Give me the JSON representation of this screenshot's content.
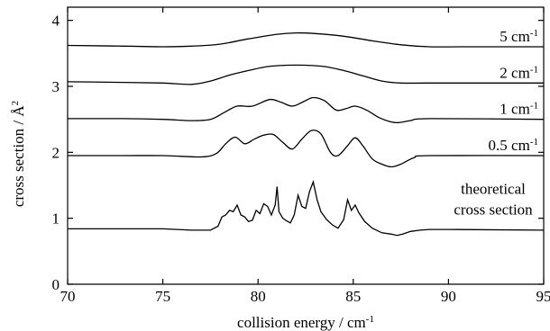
{
  "chart_data": {
    "type": "line",
    "xlabel": "collision energy / cm",
    "xlabel_sup": "-1",
    "ylabel": "cross section / Å",
    "ylabel_sup": "2",
    "xlim": [
      70,
      95
    ],
    "ylim": [
      0,
      4.2
    ],
    "xticks": [
      70,
      75,
      80,
      85,
      90,
      95
    ],
    "yticks": [
      0,
      1,
      2,
      3,
      4
    ],
    "grid": false,
    "series": [
      {
        "name": "5 cm",
        "label_sup": "-1",
        "label_pos": [
          95,
          3.6
        ],
        "x": [
          70,
          73,
          75,
          76.5,
          78,
          79.5,
          81,
          82,
          83,
          84.5,
          86,
          87.5,
          89,
          91,
          95
        ],
        "y": [
          3.62,
          3.61,
          3.6,
          3.61,
          3.64,
          3.72,
          3.79,
          3.81,
          3.8,
          3.76,
          3.69,
          3.63,
          3.6,
          3.6,
          3.6
        ]
      },
      {
        "name": "2 cm",
        "label_sup": "-1",
        "label_pos": [
          95,
          3.05
        ],
        "x": [
          70,
          73,
          75,
          76.5,
          77.5,
          78.5,
          79.5,
          80.5,
          81.5,
          82.5,
          83.5,
          84.5,
          85.5,
          86.5,
          87.5,
          89,
          95
        ],
        "y": [
          3.07,
          3.06,
          3.05,
          3.03,
          3.08,
          3.17,
          3.24,
          3.3,
          3.32,
          3.32,
          3.3,
          3.24,
          3.16,
          3.08,
          3.05,
          3.05,
          3.05
        ]
      },
      {
        "name": "1 cm",
        "label_sup": "-1",
        "label_pos": [
          95,
          2.5
        ],
        "x": [
          70,
          73,
          75,
          76.5,
          77.5,
          78.2,
          78.9,
          79.7,
          80.6,
          81.2,
          81.8,
          82.4,
          82.9,
          83.5,
          84.1,
          84.6,
          85.1,
          85.7,
          86.4,
          87.2,
          88,
          89,
          95
        ],
        "y": [
          2.51,
          2.51,
          2.5,
          2.48,
          2.5,
          2.6,
          2.7,
          2.7,
          2.8,
          2.76,
          2.7,
          2.77,
          2.83,
          2.78,
          2.64,
          2.66,
          2.7,
          2.64,
          2.52,
          2.45,
          2.48,
          2.51,
          2.5
        ]
      },
      {
        "name": "0.5 cm",
        "label_sup": "-1",
        "label_pos": [
          95,
          1.95
        ],
        "x": [
          70,
          73,
          75,
          77,
          77.8,
          78.3,
          78.8,
          79.3,
          79.8,
          80.3,
          80.8,
          81.3,
          81.8,
          82.3,
          82.8,
          83.3,
          83.8,
          84.2,
          84.7,
          85.1,
          85.5,
          86,
          86.5,
          87,
          87.5,
          88.2,
          89,
          95
        ],
        "y": [
          1.95,
          1.95,
          1.95,
          1.93,
          1.98,
          2.13,
          2.23,
          2.13,
          2.2,
          2.26,
          2.27,
          2.15,
          2.05,
          2.2,
          2.33,
          2.28,
          2.0,
          1.95,
          2.1,
          2.22,
          2.1,
          1.9,
          1.82,
          1.78,
          1.82,
          1.92,
          1.95,
          1.95
        ]
      },
      {
        "name": "theoretical",
        "name2": "cross section",
        "label_pos": [
          95,
          0.83
        ],
        "x": [
          70,
          73,
          75,
          76.5,
          77.5,
          77.9,
          78.1,
          78.3,
          78.5,
          78.7,
          78.9,
          79.1,
          79.3,
          79.5,
          79.7,
          79.9,
          80.1,
          80.3,
          80.5,
          80.7,
          80.9,
          81.0,
          81.1,
          81.3,
          81.5,
          81.7,
          81.9,
          82.1,
          82.3,
          82.5,
          82.7,
          82.9,
          83.1,
          83.3,
          83.6,
          83.9,
          84.2,
          84.5,
          84.7,
          84.9,
          85.1,
          85.3,
          85.6,
          86.0,
          86.5,
          87.0,
          87.3,
          87.6,
          88.0,
          88.5,
          89.0,
          90,
          95
        ],
        "y": [
          0.84,
          0.84,
          0.84,
          0.82,
          0.82,
          0.88,
          1.02,
          1.05,
          1.12,
          1.1,
          1.2,
          1.05,
          1.02,
          0.95,
          0.97,
          1.12,
          1.07,
          1.22,
          1.18,
          1.05,
          1.2,
          1.48,
          1.1,
          1.0,
          0.96,
          0.93,
          1.05,
          1.35,
          1.18,
          1.15,
          1.4,
          1.55,
          1.28,
          1.1,
          0.98,
          0.9,
          0.85,
          0.98,
          1.28,
          1.12,
          1.2,
          1.08,
          0.95,
          0.85,
          0.78,
          0.76,
          0.74,
          0.76,
          0.8,
          0.82,
          0.83,
          0.83,
          0.82
        ]
      }
    ]
  }
}
